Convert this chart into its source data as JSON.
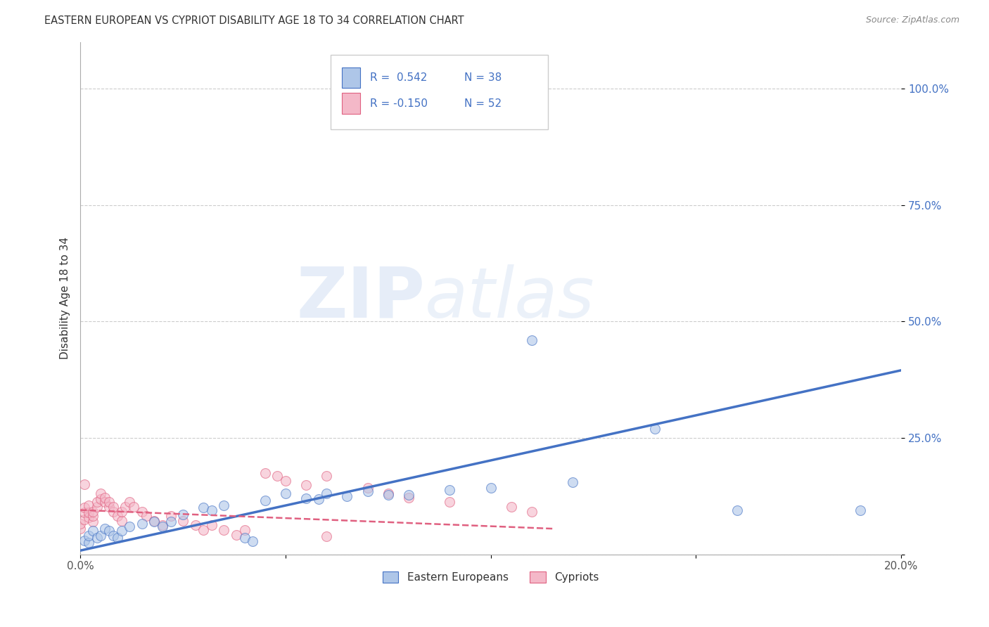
{
  "title": "EASTERN EUROPEAN VS CYPRIOT DISABILITY AGE 18 TO 34 CORRELATION CHART",
  "source": "Source: ZipAtlas.com",
  "ylabel": "Disability Age 18 to 34",
  "xlim": [
    0,
    0.2
  ],
  "ylim": [
    0,
    1.1
  ],
  "xtick_positions": [
    0.0,
    0.05,
    0.1,
    0.15,
    0.2
  ],
  "xtick_labels": [
    "0.0%",
    "",
    "",
    "",
    "20.0%"
  ],
  "ytick_positions": [
    0.0,
    0.25,
    0.5,
    0.75,
    1.0
  ],
  "ytick_labels": [
    "",
    "25.0%",
    "50.0%",
    "75.0%",
    "100.0%"
  ],
  "legend_line1": "R =  0.542   N = 38",
  "legend_line2": "R = -0.150   N = 52",
  "legend_label_blue": "Eastern Europeans",
  "legend_label_pink": "Cypriots",
  "watermark_zip": "ZIP",
  "watermark_atlas": "atlas",
  "blue_fill": "#aec6e8",
  "blue_edge": "#4472c4",
  "pink_fill": "#f4b8c8",
  "pink_edge": "#e06080",
  "blue_line_color": "#4472c4",
  "pink_line_color": "#e06080",
  "legend_text_color": "#4472c4",
  "legend_r_color": "#333333",
  "background_color": "#ffffff",
  "blue_scatter_x": [
    0.001,
    0.002,
    0.002,
    0.003,
    0.004,
    0.005,
    0.006,
    0.007,
    0.008,
    0.009,
    0.01,
    0.012,
    0.015,
    0.018,
    0.02,
    0.022,
    0.025,
    0.03,
    0.032,
    0.035,
    0.04,
    0.042,
    0.045,
    0.05,
    0.055,
    0.058,
    0.06,
    0.065,
    0.07,
    0.075,
    0.08,
    0.09,
    0.1,
    0.11,
    0.12,
    0.14,
    0.16,
    0.19
  ],
  "blue_scatter_y": [
    0.03,
    0.025,
    0.04,
    0.05,
    0.035,
    0.04,
    0.055,
    0.05,
    0.04,
    0.035,
    0.05,
    0.06,
    0.065,
    0.07,
    0.06,
    0.07,
    0.085,
    0.1,
    0.095,
    0.105,
    0.035,
    0.028,
    0.115,
    0.13,
    0.12,
    0.118,
    0.13,
    0.125,
    0.135,
    0.128,
    0.128,
    0.138,
    0.143,
    0.46,
    0.155,
    0.27,
    0.095,
    0.095
  ],
  "pink_scatter_x": [
    0.0,
    0.0,
    0.001,
    0.001,
    0.001,
    0.002,
    0.002,
    0.002,
    0.003,
    0.003,
    0.003,
    0.004,
    0.004,
    0.005,
    0.005,
    0.006,
    0.006,
    0.007,
    0.007,
    0.008,
    0.008,
    0.009,
    0.01,
    0.01,
    0.011,
    0.012,
    0.013,
    0.015,
    0.016,
    0.018,
    0.02,
    0.022,
    0.025,
    0.028,
    0.03,
    0.032,
    0.035,
    0.038,
    0.04,
    0.045,
    0.048,
    0.05,
    0.055,
    0.06,
    0.07,
    0.075,
    0.08,
    0.09,
    0.105,
    0.11,
    0.06,
    0.001
  ],
  "pink_scatter_y": [
    0.055,
    0.065,
    0.075,
    0.09,
    0.1,
    0.08,
    0.09,
    0.105,
    0.07,
    0.082,
    0.092,
    0.102,
    0.112,
    0.118,
    0.13,
    0.112,
    0.122,
    0.102,
    0.112,
    0.092,
    0.102,
    0.082,
    0.072,
    0.092,
    0.102,
    0.112,
    0.102,
    0.092,
    0.082,
    0.072,
    0.062,
    0.082,
    0.072,
    0.062,
    0.052,
    0.062,
    0.052,
    0.042,
    0.052,
    0.175,
    0.168,
    0.158,
    0.148,
    0.168,
    0.142,
    0.13,
    0.122,
    0.112,
    0.102,
    0.092,
    0.038,
    0.15
  ],
  "blue_line_x": [
    0.0,
    0.2
  ],
  "blue_line_y": [
    0.008,
    0.395
  ],
  "pink_line_x": [
    0.0,
    0.115
  ],
  "pink_line_y": [
    0.095,
    0.055
  ],
  "grid_color": "#cccccc",
  "marker_size": 100,
  "marker_alpha": 0.6
}
